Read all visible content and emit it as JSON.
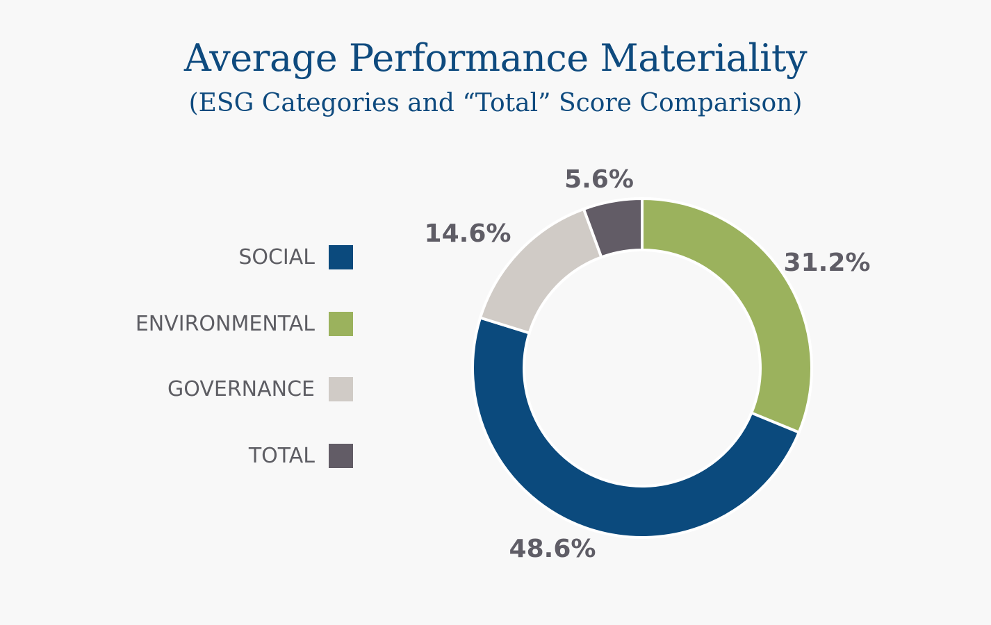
{
  "chart_data": {
    "type": "pie",
    "title": "Average Performance Materiality",
    "subtitle": "(ESG Categories and “Total” Score Comparison)",
    "legend_position": "left",
    "categories": [
      "SOCIAL",
      "ENVIRONMENTAL",
      "GOVERNANCE",
      "TOTAL"
    ],
    "values": [
      48.6,
      31.2,
      14.6,
      5.6
    ],
    "labels": [
      "48.6%",
      "31.2%",
      "14.6%",
      "5.6%"
    ],
    "colors": [
      "#0b4a7d",
      "#9bb25d",
      "#d0cbc6",
      "#625c66"
    ]
  }
}
